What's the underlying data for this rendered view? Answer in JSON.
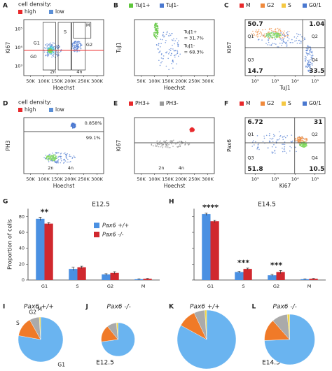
{
  "flow_panels": [
    {
      "letter": "A",
      "legend_title": "cell density:",
      "legend": [
        {
          "label": "high",
          "color": "#e8282b"
        },
        {
          "label": "low",
          "color": "#5b8fd6"
        }
      ],
      "ylabel": "Ki67",
      "xlabel": "Hoechst",
      "xticks": [
        "50K",
        "100K",
        "150K",
        "200K",
        "250K",
        "300K"
      ],
      "yticks": [
        "10⁵",
        "10⁴",
        "10³"
      ],
      "annotations": [
        "G1",
        "S",
        "M",
        "G0",
        "G2",
        "2n",
        "4n"
      ]
    },
    {
      "letter": "B",
      "legend": [
        {
          "label": "TuJ1+",
          "color": "#5ec63c"
        },
        {
          "label": "TuJ1-",
          "color": "#4a78d0"
        }
      ],
      "ylabel": "TuJ1",
      "xlabel": "Hoechst",
      "xticks": [
        "50K",
        "100K",
        "150K",
        "200K",
        "250K",
        "300K"
      ],
      "annotations": [
        "TuJ1+",
        "= 31.7%",
        "TuJ1-",
        "= 68.3%"
      ]
    },
    {
      "letter": "C",
      "legend": [
        {
          "label": "M",
          "color": "#e8282b"
        },
        {
          "label": "G2",
          "color": "#f08a3c"
        },
        {
          "label": "S",
          "color": "#f5c842"
        },
        {
          "label": "G0/1",
          "color": "#4a78d0"
        }
      ],
      "ylabel": "Ki67",
      "xlabel": "TuJ1",
      "xticks": [
        "10²",
        "10³",
        "10⁴",
        "10⁵"
      ],
      "annotations": [
        "50.7",
        "1.04",
        "Q1",
        "Q2",
        "Q3",
        "Q4",
        "14.7",
        "33.5"
      ]
    },
    {
      "letter": "D",
      "legend_title": "cell density:",
      "legend": [
        {
          "label": "high",
          "color": "#e8282b"
        },
        {
          "label": "low",
          "color": "#5b8fd6"
        }
      ],
      "ylabel": "PH3",
      "xlabel": "Hoechst",
      "xticks": [
        "50K",
        "100K",
        "150K",
        "200K",
        "250K",
        "300K"
      ],
      "annotations": [
        "0.858%",
        "99.1%",
        "2n",
        "4n"
      ]
    },
    {
      "letter": "E",
      "legend": [
        {
          "label": "PH3+",
          "color": "#e8282b"
        },
        {
          "label": "PH3-",
          "color": "#999999"
        }
      ],
      "ylabel": "Ki67",
      "xlabel": "Hoechst",
      "xticks": [
        "50K",
        "100K",
        "150K",
        "200K",
        "250K",
        "300K"
      ],
      "annotations": [
        "2n",
        "4n"
      ]
    },
    {
      "letter": "F",
      "legend": [
        {
          "label": "M",
          "color": "#e8282b"
        },
        {
          "label": "G2",
          "color": "#f08a3c"
        },
        {
          "label": "S",
          "color": "#f5c842"
        },
        {
          "label": "G0/1",
          "color": "#4a78d0"
        }
      ],
      "ylabel": "Pax6",
      "xlabel": "Ki67",
      "xticks": [
        "10²",
        "10³",
        "10⁴",
        "10⁵"
      ],
      "annotations": [
        "6.72",
        "31",
        "Q1",
        "Q2",
        "Q3",
        "Q4",
        "51.8",
        "10.5"
      ]
    }
  ],
  "chart_data": [
    {
      "type": "bar",
      "letter": "G",
      "title": "E12.5",
      "ylabel": "Proportion of cells",
      "categories": [
        "G1",
        "S",
        "G2",
        "M"
      ],
      "series": [
        {
          "name": "Pax6 +/+",
          "color": "#4a90e2",
          "values": [
            77,
            14,
            7,
            1
          ],
          "errors": [
            2,
            2,
            1,
            0.5
          ]
        },
        {
          "name": "Pax6 -/-",
          "color": "#d0282e",
          "values": [
            71,
            16,
            9,
            1.5
          ],
          "errors": [
            1.5,
            1.5,
            1.5,
            0.5
          ]
        }
      ],
      "ylim": [
        0,
        90
      ],
      "yticks": [
        0,
        20,
        40,
        60,
        80
      ],
      "annotations": [
        "**"
      ]
    },
    {
      "type": "bar",
      "letter": "H",
      "title": "E14.5",
      "categories": [
        "G1",
        "S",
        "G2",
        "M"
      ],
      "series": [
        {
          "color": "#4a90e2",
          "values": [
            83,
            10,
            6,
            1
          ],
          "errors": [
            1.5,
            1,
            1,
            0.3
          ]
        },
        {
          "color": "#d0282e",
          "values": [
            74,
            14,
            10,
            1.5
          ],
          "errors": [
            1.5,
            1,
            2,
            0.5
          ]
        }
      ],
      "ylim": [
        0,
        90
      ],
      "yticks": [
        0,
        20,
        40,
        60,
        80
      ],
      "annotations": [
        "****",
        "***",
        "***"
      ]
    },
    {
      "type": "pie",
      "letter": "I",
      "title": "Pax6 +/+",
      "subtitle": "E12.5",
      "categories": [
        "G1",
        "S",
        "G2",
        "M"
      ],
      "values": [
        77,
        14,
        7,
        1
      ],
      "colors": [
        "#6ab4f0",
        "#f07a28",
        "#aaaaaa",
        "#f5d742"
      ]
    },
    {
      "type": "pie",
      "letter": "J",
      "title": "Pax6 -/-",
      "values": [
        71,
        16,
        9,
        1.5
      ],
      "colors": [
        "#6ab4f0",
        "#f07a28",
        "#aaaaaa",
        "#f5d742"
      ]
    },
    {
      "type": "pie",
      "letter": "K",
      "title": "Pax6 +/+",
      "subtitle": "E14.5",
      "values": [
        83,
        10,
        6,
        1
      ],
      "colors": [
        "#6ab4f0",
        "#f07a28",
        "#aaaaaa",
        "#f5d742"
      ]
    },
    {
      "type": "pie",
      "letter": "L",
      "title": "Pax6 -/-",
      "values": [
        74,
        14,
        10,
        1.5
      ],
      "colors": [
        "#6ab4f0",
        "#f07a28",
        "#aaaaaa",
        "#f5d742"
      ]
    }
  ]
}
